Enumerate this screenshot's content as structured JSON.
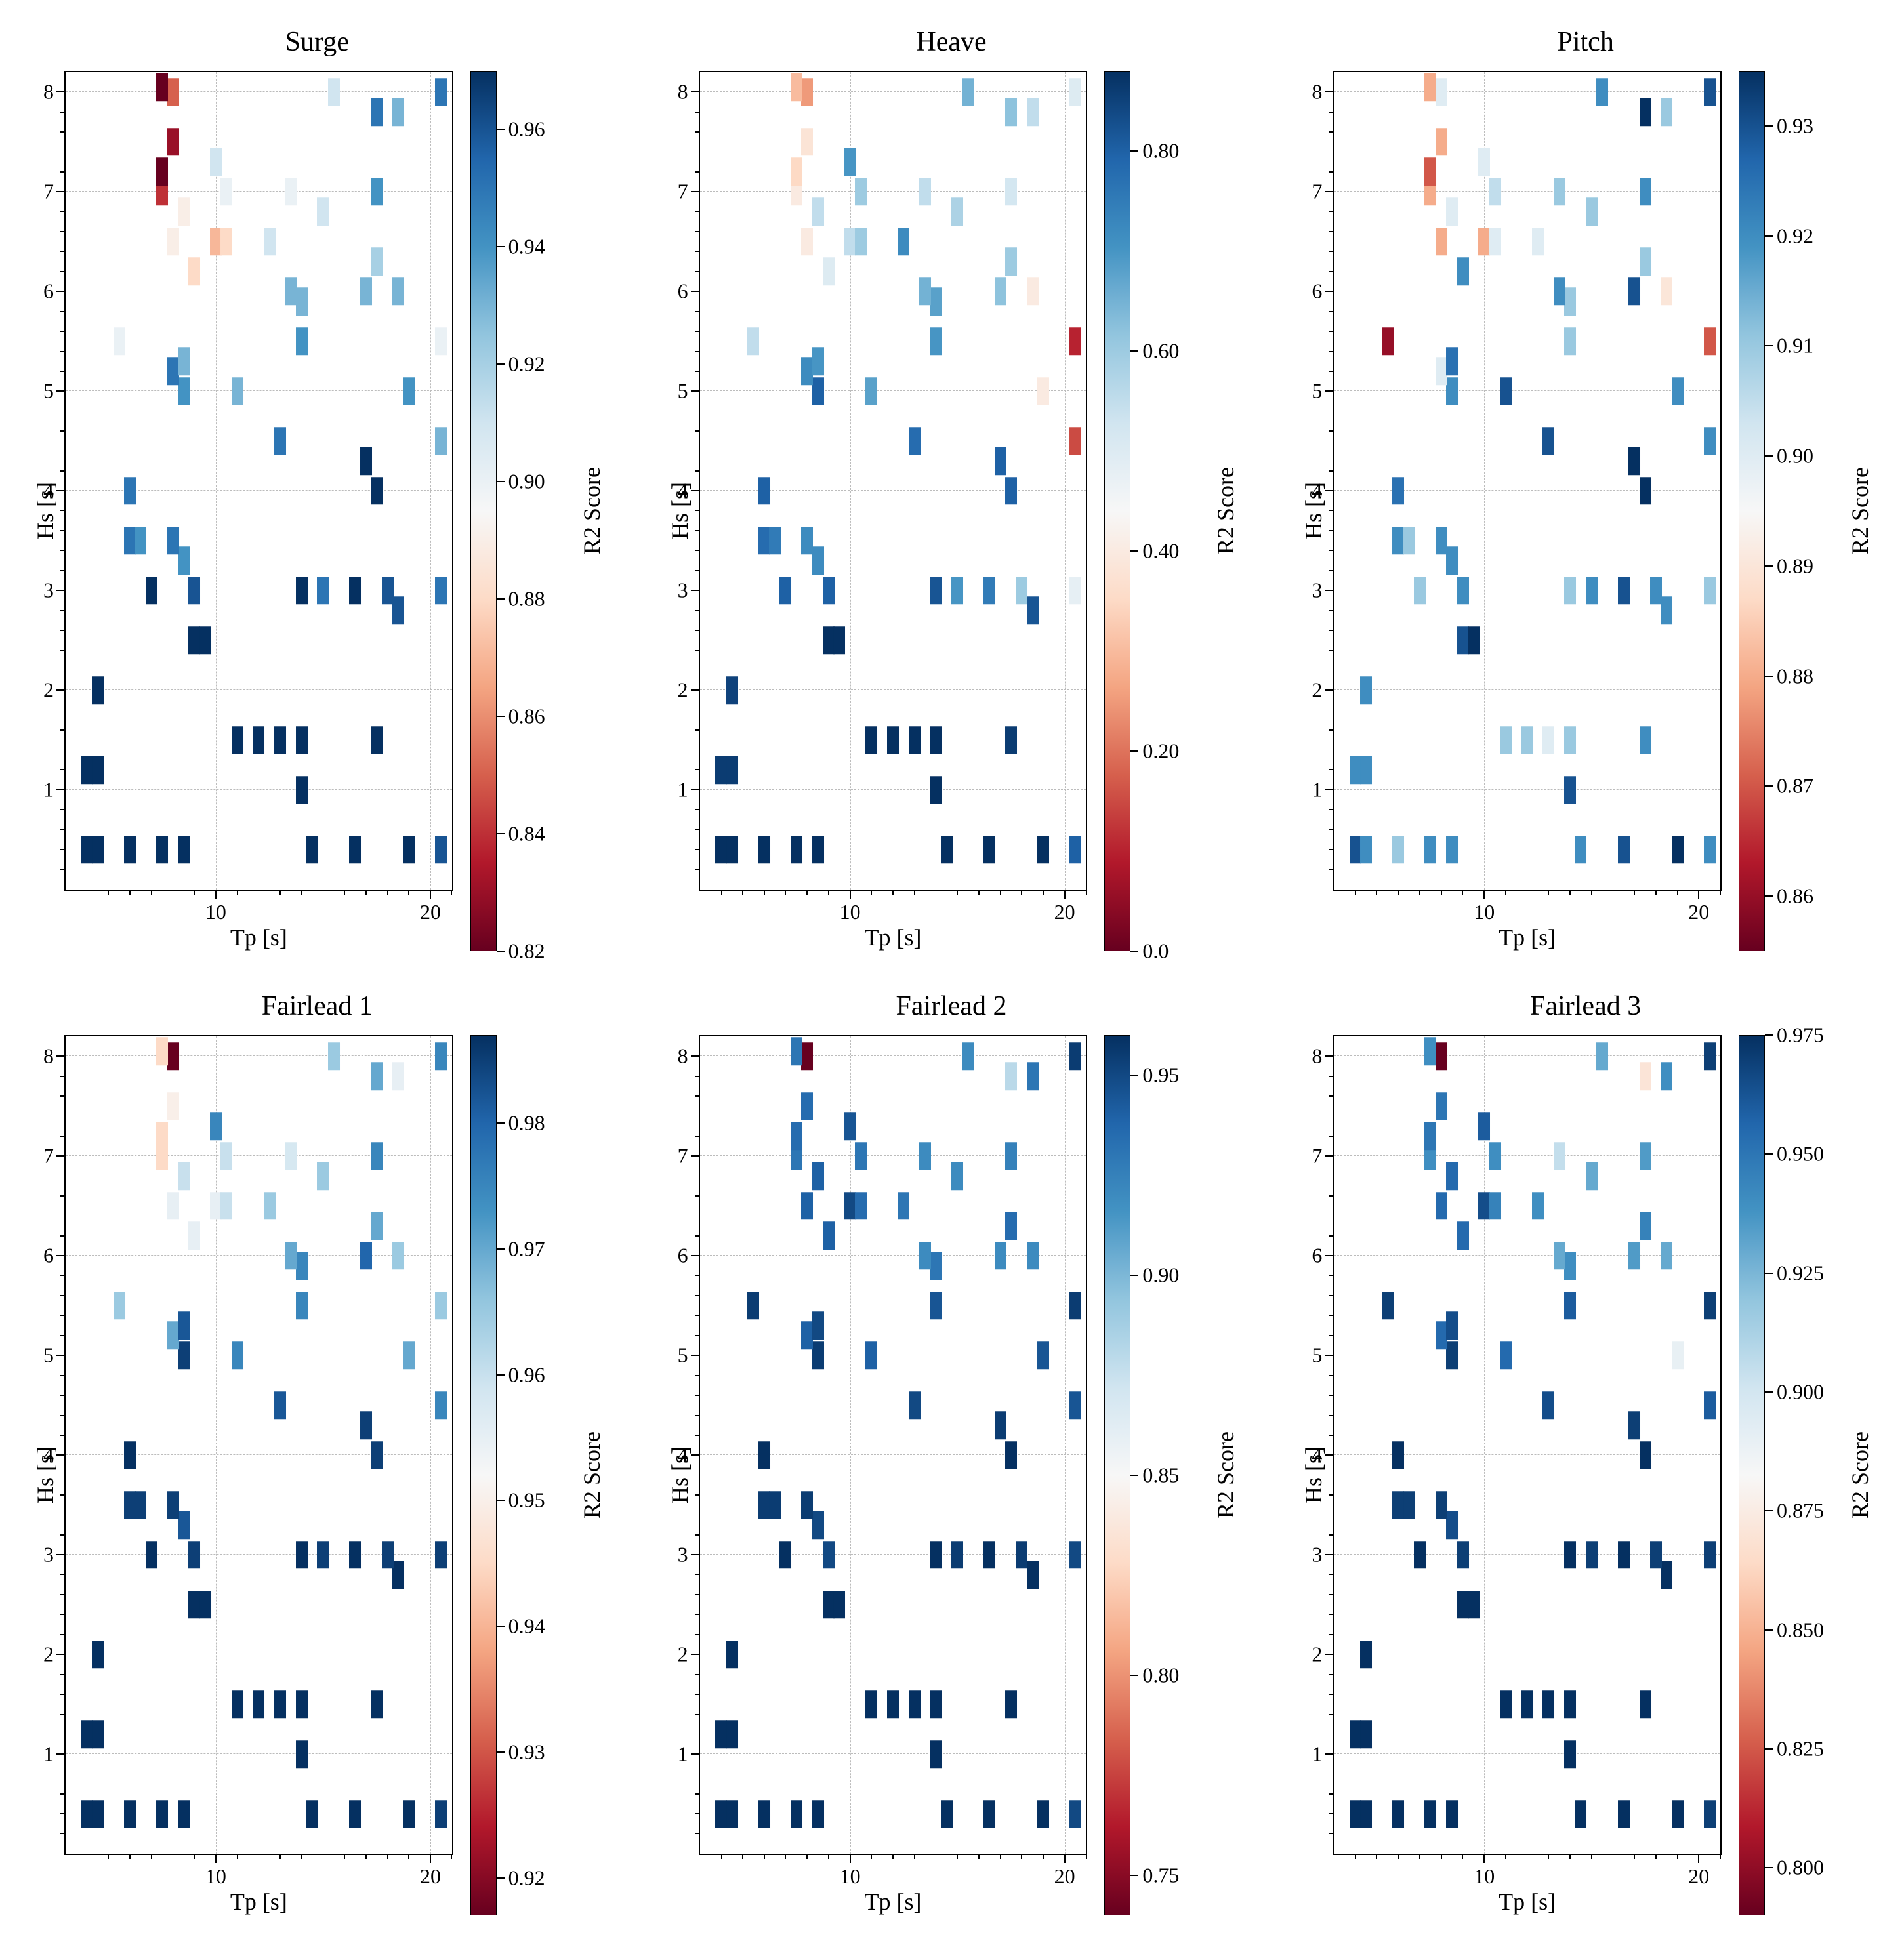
{
  "layout": {
    "rows": 2,
    "cols": 3,
    "xlabel": "Tp [s]",
    "ylabel": "Hs [s]",
    "cb_label": "R2 Score",
    "xlim": [
      3,
      21
    ],
    "ylim": [
      0,
      8.2
    ],
    "xticks_major": [
      10,
      20
    ],
    "xticks_minor": [
      4,
      5,
      6,
      7,
      8,
      9,
      11,
      12,
      13,
      14,
      15,
      16,
      17,
      18,
      19,
      21
    ],
    "yticks_major": [
      1,
      2,
      3,
      4,
      5,
      6,
      7,
      8
    ],
    "yticks_minor_step": 0.2,
    "marker_w_dataunits": 0.55,
    "marker_h_dataunits": 0.28,
    "title_fontsize": 42,
    "axis_fontsize": 36,
    "tick_fontsize": 32,
    "grid_color": "#bcbcbc",
    "background": "#ffffff",
    "colormap_stops": [
      [
        0.0,
        "#67001f"
      ],
      [
        0.1,
        "#b2182b"
      ],
      [
        0.2,
        "#d6604d"
      ],
      [
        0.3,
        "#f4a582"
      ],
      [
        0.4,
        "#fddbc7"
      ],
      [
        0.5,
        "#f7f7f7"
      ],
      [
        0.6,
        "#d1e5f0"
      ],
      [
        0.7,
        "#92c5de"
      ],
      [
        0.8,
        "#4393c3"
      ],
      [
        0.9,
        "#2166ac"
      ],
      [
        1.0,
        "#053061"
      ]
    ]
  },
  "points": [
    {
      "x": 4.0,
      "y": 0.4
    },
    {
      "x": 4.5,
      "y": 0.4
    },
    {
      "x": 6.0,
      "y": 0.4
    },
    {
      "x": 7.5,
      "y": 0.4
    },
    {
      "x": 8.5,
      "y": 0.4
    },
    {
      "x": 14.5,
      "y": 0.4
    },
    {
      "x": 16.5,
      "y": 0.4
    },
    {
      "x": 19.0,
      "y": 0.4
    },
    {
      "x": 20.5,
      "y": 0.4
    },
    {
      "x": 14.0,
      "y": 1.0
    },
    {
      "x": 4.0,
      "y": 1.2
    },
    {
      "x": 4.5,
      "y": 1.2
    },
    {
      "x": 11.0,
      "y": 1.5
    },
    {
      "x": 12.0,
      "y": 1.5
    },
    {
      "x": 13.0,
      "y": 1.5
    },
    {
      "x": 14.0,
      "y": 1.5
    },
    {
      "x": 17.5,
      "y": 1.5
    },
    {
      "x": 4.5,
      "y": 2.0
    },
    {
      "x": 9.0,
      "y": 2.5
    },
    {
      "x": 9.5,
      "y": 2.5
    },
    {
      "x": 18.5,
      "y": 2.8
    },
    {
      "x": 7.0,
      "y": 3.0
    },
    {
      "x": 9.0,
      "y": 3.0
    },
    {
      "x": 14.0,
      "y": 3.0
    },
    {
      "x": 15.0,
      "y": 3.0
    },
    {
      "x": 16.5,
      "y": 3.0
    },
    {
      "x": 18.0,
      "y": 3.0
    },
    {
      "x": 20.5,
      "y": 3.0
    },
    {
      "x": 8.5,
      "y": 3.3
    },
    {
      "x": 6.0,
      "y": 3.5
    },
    {
      "x": 6.5,
      "y": 3.5
    },
    {
      "x": 8.0,
      "y": 3.5
    },
    {
      "x": 6.0,
      "y": 4.0
    },
    {
      "x": 17.5,
      "y": 4.0
    },
    {
      "x": 17.0,
      "y": 4.3
    },
    {
      "x": 13.0,
      "y": 4.5
    },
    {
      "x": 20.5,
      "y": 4.5
    },
    {
      "x": 8.5,
      "y": 5.0
    },
    {
      "x": 11.0,
      "y": 5.0
    },
    {
      "x": 19.0,
      "y": 5.0
    },
    {
      "x": 8.0,
      "y": 5.2
    },
    {
      "x": 8.5,
      "y": 5.3
    },
    {
      "x": 5.5,
      "y": 5.5
    },
    {
      "x": 14.0,
      "y": 5.5
    },
    {
      "x": 20.5,
      "y": 5.5
    },
    {
      "x": 14.0,
      "y": 5.9
    },
    {
      "x": 13.5,
      "y": 6.0
    },
    {
      "x": 17.0,
      "y": 6.0
    },
    {
      "x": 18.5,
      "y": 6.0
    },
    {
      "x": 9.0,
      "y": 6.2
    },
    {
      "x": 17.5,
      "y": 6.3
    },
    {
      "x": 8.0,
      "y": 6.5
    },
    {
      "x": 10.0,
      "y": 6.5
    },
    {
      "x": 10.5,
      "y": 6.5
    },
    {
      "x": 12.5,
      "y": 6.5
    },
    {
      "x": 8.5,
      "y": 6.8
    },
    {
      "x": 15.0,
      "y": 6.8
    },
    {
      "x": 7.5,
      "y": 7.0
    },
    {
      "x": 10.5,
      "y": 7.0
    },
    {
      "x": 13.5,
      "y": 7.0
    },
    {
      "x": 17.5,
      "y": 7.0
    },
    {
      "x": 7.5,
      "y": 7.2
    },
    {
      "x": 10.0,
      "y": 7.3
    },
    {
      "x": 8.0,
      "y": 7.5
    },
    {
      "x": 17.5,
      "y": 7.8
    },
    {
      "x": 18.5,
      "y": 7.8
    },
    {
      "x": 8.0,
      "y": 8.0
    },
    {
      "x": 15.5,
      "y": 8.0
    },
    {
      "x": 20.5,
      "y": 8.0
    },
    {
      "x": 7.5,
      "y": 8.05
    }
  ],
  "panels": [
    {
      "title": "Surge",
      "cmin": 0.82,
      "cmax": 0.97,
      "cb_ticks": [
        0.82,
        0.84,
        0.86,
        0.88,
        0.9,
        0.92,
        0.94,
        0.96
      ],
      "values": [
        0.97,
        0.97,
        0.97,
        0.97,
        0.97,
        0.97,
        0.97,
        0.97,
        0.96,
        0.97,
        0.97,
        0.97,
        0.97,
        0.97,
        0.97,
        0.97,
        0.97,
        0.97,
        0.97,
        0.97,
        0.96,
        0.97,
        0.96,
        0.97,
        0.95,
        0.97,
        0.96,
        0.95,
        0.94,
        0.95,
        0.94,
        0.95,
        0.95,
        0.97,
        0.97,
        0.95,
        0.93,
        0.94,
        0.93,
        0.94,
        0.95,
        0.93,
        0.9,
        0.94,
        0.9,
        0.93,
        0.93,
        0.93,
        0.93,
        0.88,
        0.92,
        0.89,
        0.87,
        0.88,
        0.91,
        0.89,
        0.91,
        0.84,
        0.9,
        0.9,
        0.94,
        0.82,
        0.91,
        0.83,
        0.95,
        0.93,
        0.85,
        0.91,
        0.95,
        0.82
      ]
    },
    {
      "title": "Heave",
      "cmin": 0.0,
      "cmax": 0.88,
      "cb_ticks": [
        0.0,
        0.2,
        0.4,
        0.6,
        0.8
      ],
      "values": [
        0.88,
        0.88,
        0.88,
        0.88,
        0.88,
        0.88,
        0.88,
        0.88,
        0.8,
        0.88,
        0.86,
        0.86,
        0.88,
        0.88,
        0.88,
        0.88,
        0.86,
        0.85,
        0.88,
        0.88,
        0.82,
        0.8,
        0.8,
        0.82,
        0.7,
        0.75,
        0.6,
        0.48,
        0.72,
        0.78,
        0.75,
        0.72,
        0.8,
        0.8,
        0.8,
        0.78,
        0.15,
        0.8,
        0.68,
        0.4,
        0.72,
        0.7,
        0.55,
        0.7,
        0.1,
        0.68,
        0.65,
        0.62,
        0.4,
        0.5,
        0.6,
        0.4,
        0.55,
        0.6,
        0.72,
        0.55,
        0.58,
        0.4,
        0.6,
        0.55,
        0.52,
        0.35,
        0.7,
        0.38,
        0.62,
        0.55,
        0.25,
        0.65,
        0.5,
        0.3
      ]
    },
    {
      "title": "Pitch",
      "cmin": 0.855,
      "cmax": 0.935,
      "cb_ticks": [
        0.86,
        0.87,
        0.88,
        0.89,
        0.9,
        0.91,
        0.92,
        0.93
      ],
      "values": [
        0.93,
        0.92,
        0.91,
        0.92,
        0.92,
        0.92,
        0.93,
        0.935,
        0.92,
        0.93,
        0.92,
        0.92,
        0.91,
        0.91,
        0.9,
        0.91,
        0.92,
        0.92,
        0.93,
        0.935,
        0.92,
        0.91,
        0.92,
        0.91,
        0.92,
        0.93,
        0.92,
        0.91,
        0.92,
        0.92,
        0.91,
        0.92,
        0.925,
        0.935,
        0.935,
        0.93,
        0.92,
        0.92,
        0.93,
        0.92,
        0.9,
        0.925,
        0.86,
        0.91,
        0.87,
        0.91,
        0.92,
        0.93,
        0.89,
        0.92,
        0.91,
        0.88,
        0.88,
        0.9,
        0.9,
        0.9,
        0.91,
        0.88,
        0.905,
        0.91,
        0.92,
        0.87,
        0.9,
        0.88,
        0.935,
        0.91,
        0.9,
        0.92,
        0.93,
        0.88
      ]
    },
    {
      "title": "Fairlead 1",
      "cmin": 0.917,
      "cmax": 0.987,
      "cb_ticks": [
        0.92,
        0.93,
        0.94,
        0.95,
        0.96,
        0.97,
        0.98
      ],
      "values": [
        0.987,
        0.987,
        0.987,
        0.987,
        0.987,
        0.987,
        0.987,
        0.987,
        0.985,
        0.987,
        0.987,
        0.987,
        0.987,
        0.987,
        0.987,
        0.987,
        0.987,
        0.987,
        0.987,
        0.987,
        0.987,
        0.987,
        0.985,
        0.987,
        0.985,
        0.987,
        0.985,
        0.985,
        0.982,
        0.985,
        0.985,
        0.985,
        0.987,
        0.985,
        0.985,
        0.982,
        0.975,
        0.985,
        0.975,
        0.97,
        0.97,
        0.982,
        0.965,
        0.975,
        0.965,
        0.975,
        0.97,
        0.98,
        0.965,
        0.955,
        0.97,
        0.955,
        0.955,
        0.96,
        0.965,
        0.96,
        0.965,
        0.945,
        0.96,
        0.958,
        0.975,
        0.945,
        0.975,
        0.95,
        0.97,
        0.955,
        0.917,
        0.965,
        0.975,
        0.945
      ]
    },
    {
      "title": "Fairlead 2",
      "cmin": 0.74,
      "cmax": 0.96,
      "cb_ticks": [
        0.75,
        0.8,
        0.85,
        0.9,
        0.95
      ],
      "values": [
        0.96,
        0.96,
        0.96,
        0.96,
        0.96,
        0.96,
        0.96,
        0.96,
        0.95,
        0.96,
        0.96,
        0.96,
        0.96,
        0.96,
        0.96,
        0.96,
        0.96,
        0.96,
        0.96,
        0.96,
        0.96,
        0.96,
        0.95,
        0.96,
        0.955,
        0.96,
        0.955,
        0.95,
        0.95,
        0.955,
        0.955,
        0.955,
        0.96,
        0.96,
        0.955,
        0.95,
        0.945,
        0.955,
        0.94,
        0.945,
        0.94,
        0.95,
        0.955,
        0.945,
        0.955,
        0.93,
        0.92,
        0.92,
        0.92,
        0.94,
        0.935,
        0.94,
        0.95,
        0.935,
        0.93,
        0.94,
        0.92,
        0.93,
        0.93,
        0.92,
        0.925,
        0.935,
        0.945,
        0.935,
        0.88,
        0.93,
        0.74,
        0.92,
        0.955,
        0.93
      ]
    },
    {
      "title": "Fairlead 3",
      "cmin": 0.79,
      "cmax": 0.975,
      "cb_ticks": [
        0.8,
        0.825,
        0.85,
        0.875,
        0.9,
        0.925,
        0.95,
        0.975
      ],
      "cb_tick_fmt": 3,
      "values": [
        0.975,
        0.975,
        0.975,
        0.975,
        0.975,
        0.975,
        0.975,
        0.975,
        0.97,
        0.975,
        0.975,
        0.975,
        0.975,
        0.975,
        0.975,
        0.975,
        0.975,
        0.975,
        0.975,
        0.975,
        0.975,
        0.975,
        0.97,
        0.975,
        0.97,
        0.975,
        0.97,
        0.97,
        0.965,
        0.97,
        0.97,
        0.97,
        0.975,
        0.975,
        0.97,
        0.965,
        0.96,
        0.97,
        0.955,
        0.89,
        0.955,
        0.965,
        0.97,
        0.96,
        0.97,
        0.94,
        0.93,
        0.935,
        0.93,
        0.955,
        0.945,
        0.955,
        0.965,
        0.945,
        0.94,
        0.955,
        0.93,
        0.94,
        0.94,
        0.905,
        0.935,
        0.95,
        0.96,
        0.95,
        0.87,
        0.94,
        0.79,
        0.93,
        0.97,
        0.94
      ]
    }
  ]
}
